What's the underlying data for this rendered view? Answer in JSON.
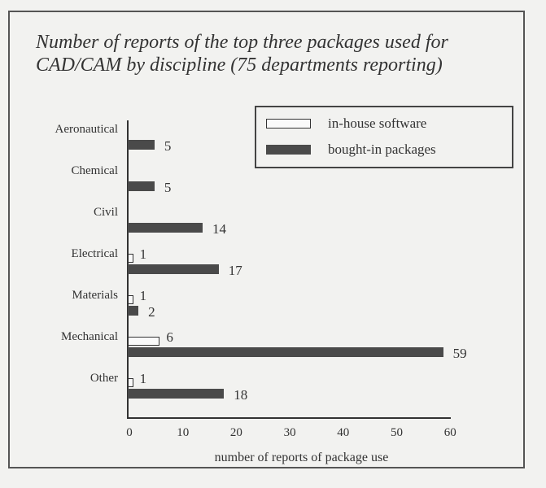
{
  "chart_data": {
    "type": "bar",
    "orientation": "horizontal",
    "title": "Number of reports of the top three packages used for CAD/CAM by discipline  (75 departments reporting)",
    "title_lines": [
      "Number of reports of the top three packages used for",
      "CAD/CAM by discipline  (75 departments reporting)"
    ],
    "xlabel": "number of reports of package use",
    "ylabel": "",
    "xlim": [
      0,
      60
    ],
    "x_ticks": [
      "0",
      "10",
      "20",
      "30",
      "40",
      "50",
      "60"
    ],
    "grid": false,
    "legend_position": "top-right",
    "categories": [
      "Aeronautical",
      "Chemical",
      "Civil",
      "Electrical",
      "Materials",
      "Mechanical",
      "Other"
    ],
    "series": [
      {
        "name": "in-house software",
        "values": [
          0,
          0,
          0,
          1,
          1,
          6,
          1
        ],
        "labels": [
          "",
          "",
          "",
          "1",
          "1",
          "6",
          "1"
        ],
        "color": "#fafafa"
      },
      {
        "name": "bought-in packages",
        "values": [
          5,
          5,
          14,
          17,
          2,
          59,
          18
        ],
        "labels": [
          "5",
          "5",
          "14",
          "17",
          "2",
          "59",
          "18"
        ],
        "color": "#4a4a4a"
      }
    ]
  }
}
